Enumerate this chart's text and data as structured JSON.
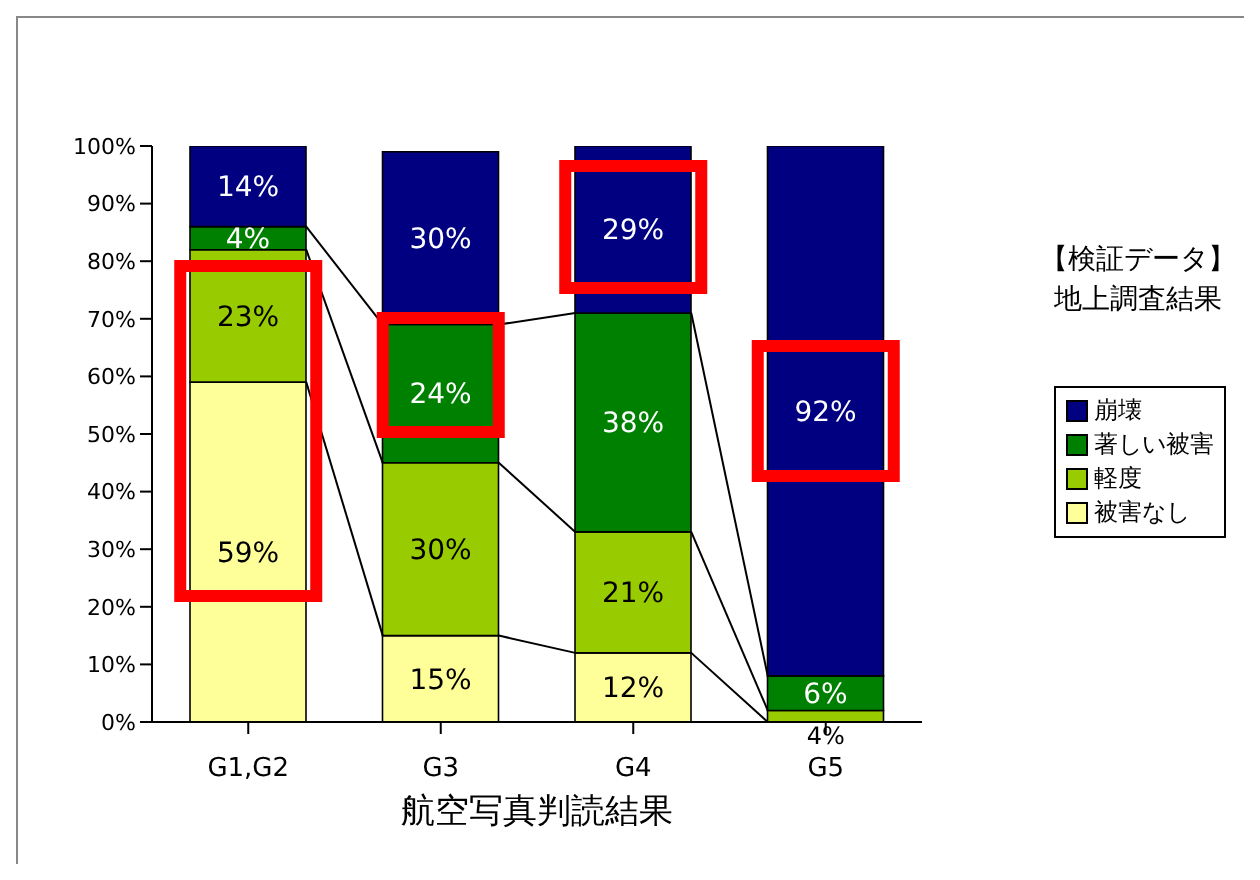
{
  "chart_data": {
    "type": "bar",
    "stacked": true,
    "xlabel": "航空写真判読結果",
    "categories": [
      "G1,G2",
      "G3",
      "G4",
      "G5"
    ],
    "series": [
      {
        "name": "被害なし",
        "color": "#ffff99",
        "values": [
          59,
          15,
          12,
          0
        ],
        "value_labels": [
          "59%",
          "15%",
          "12%",
          null
        ]
      },
      {
        "name": "軽度",
        "color": "#99cc00",
        "values": [
          23,
          30,
          21,
          2
        ],
        "value_labels": [
          "23%",
          "30%",
          "21%",
          null
        ]
      },
      {
        "name": "著しい被害",
        "color": "#008000",
        "values": [
          4,
          24,
          38,
          6
        ],
        "value_labels": [
          "4%",
          "24%",
          "38%",
          "6%"
        ]
      },
      {
        "name": "崩壊",
        "color": "#000080",
        "values": [
          14,
          30,
          29,
          92
        ],
        "value_labels": [
          "14%",
          "30%",
          "29%",
          "92%"
        ]
      }
    ],
    "ylim": [
      0,
      100
    ],
    "yticks": [
      {
        "value": 0,
        "label": "0%"
      },
      {
        "value": 10,
        "label": "10%"
      },
      {
        "value": 20,
        "label": "20%"
      },
      {
        "value": 30,
        "label": "30%"
      },
      {
        "value": 40,
        "label": "40%"
      },
      {
        "value": 50,
        "label": "50%"
      },
      {
        "value": 60,
        "label": "60%"
      },
      {
        "value": 70,
        "label": "70%"
      },
      {
        "value": 80,
        "label": "80%"
      },
      {
        "value": 90,
        "label": "90%"
      },
      {
        "value": 100,
        "label": "100%"
      }
    ],
    "annotations": [
      "【検証データ】",
      "地上調査結果",
      {
        "text": "4%",
        "x": "G5",
        "y": 1
      }
    ],
    "legend": "right",
    "grid": false
  }
}
